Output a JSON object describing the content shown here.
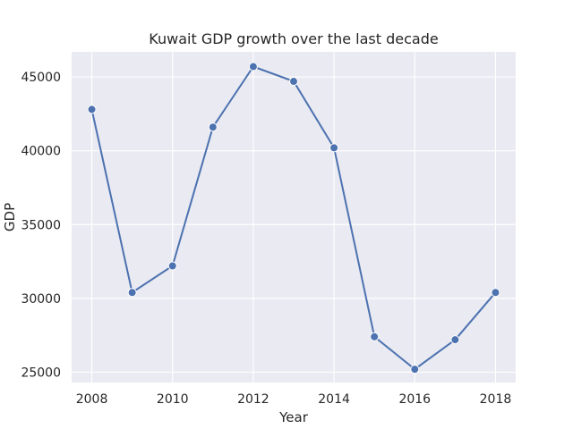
{
  "chart_data": {
    "type": "line",
    "title": "Kuwait GDP growth over the last decade",
    "xlabel": "Year",
    "ylabel": "GDP",
    "x": [
      2008,
      2009,
      2010,
      2011,
      2012,
      2013,
      2014,
      2015,
      2016,
      2017,
      2018
    ],
    "series": [
      {
        "values": [
          42800,
          30400,
          32200,
          41600,
          45700,
          44700,
          40200,
          27400,
          25200,
          27200,
          30400
        ]
      }
    ],
    "xticks": [
      "2008",
      "2010",
      "2012",
      "2014",
      "2016",
      "2018"
    ],
    "yticks": [
      "25000",
      "30000",
      "35000",
      "40000",
      "45000"
    ],
    "xlim": [
      2007.5,
      2018.5
    ],
    "ylim": [
      24300,
      46700
    ],
    "grid": true,
    "colors": {
      "line": "#4c72b0",
      "plot_background": "#eaeaf2",
      "grid": "#ffffff"
    }
  }
}
